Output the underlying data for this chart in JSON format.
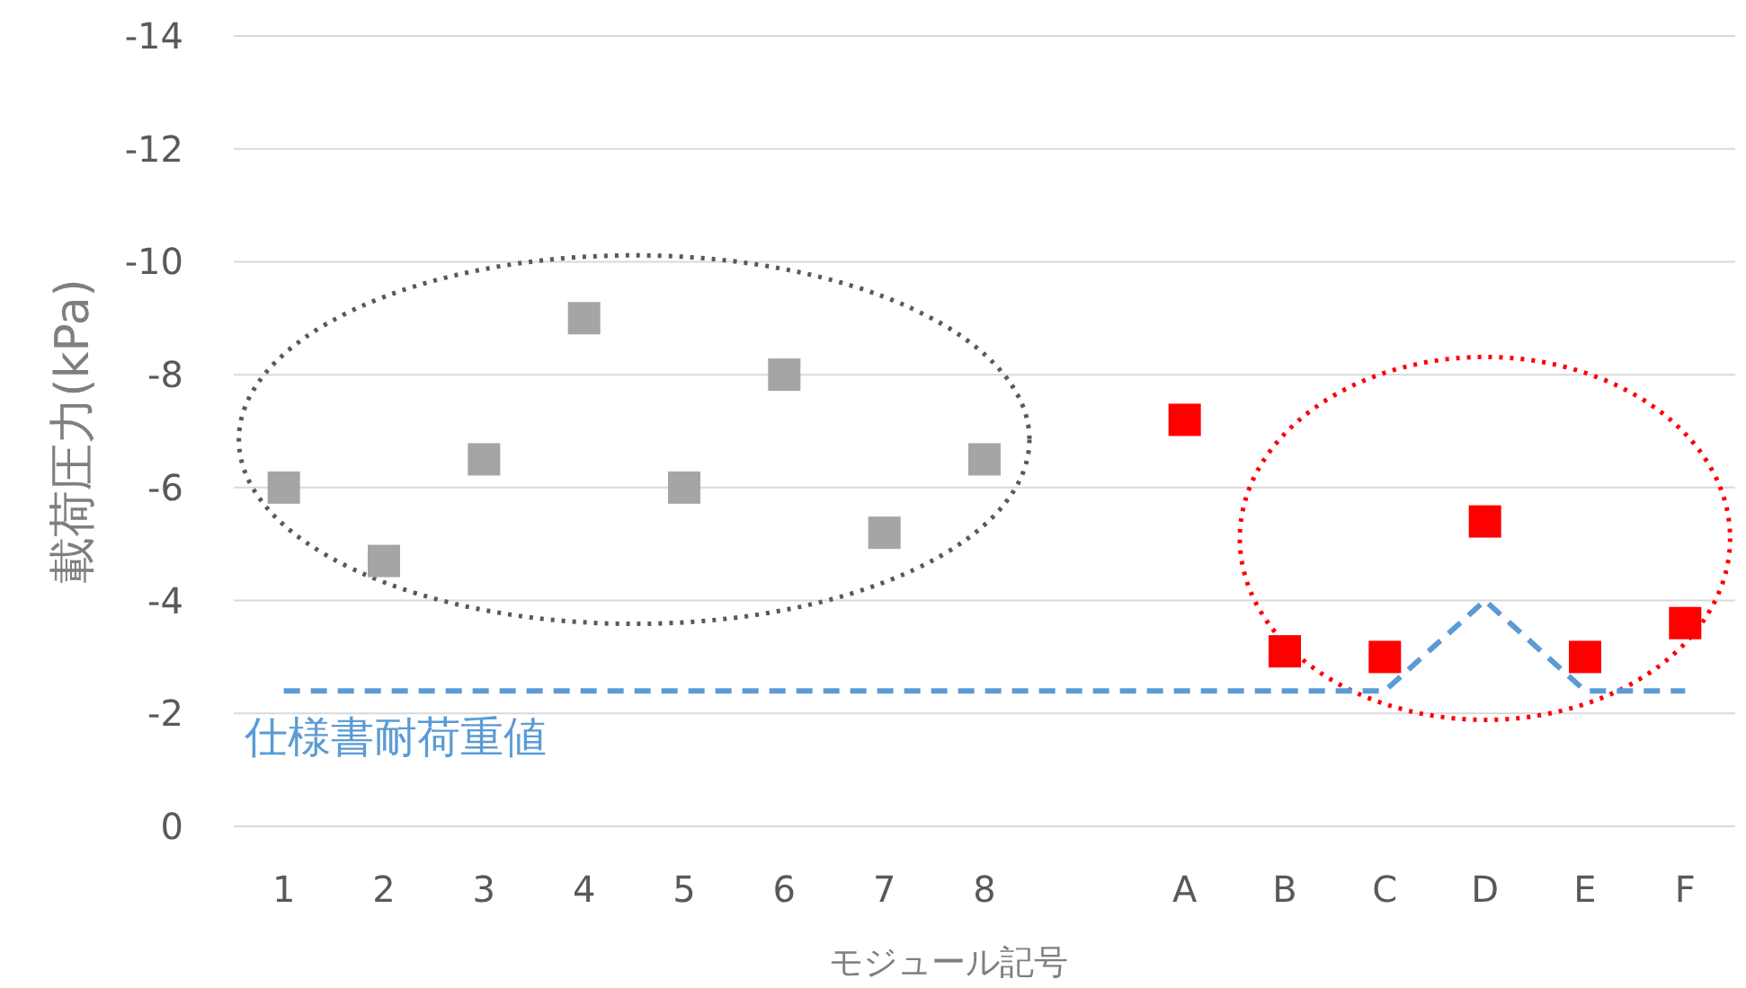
{
  "chart_data": {
    "type": "scatter",
    "xlabel": "モジュール記号",
    "ylabel": "載荷圧力(kPa)",
    "categories": [
      "1",
      "2",
      "3",
      "4",
      "5",
      "6",
      "7",
      "8",
      null,
      "A",
      "B",
      "C",
      "D",
      "E",
      "F"
    ],
    "ylim": [
      0,
      -14
    ],
    "yticks": [
      0,
      -2,
      -4,
      -6,
      -8,
      -10,
      -12,
      -14
    ],
    "grid": "y",
    "marker": "square",
    "series": [
      {
        "color": "#a5a5a5",
        "values": [
          -6,
          -4.7,
          -6.5,
          -9,
          -6,
          -8,
          -5.2,
          -6.5,
          null,
          null,
          null,
          null,
          null,
          null,
          null
        ]
      },
      {
        "color": "#ff0000",
        "values": [
          null,
          null,
          null,
          null,
          null,
          null,
          null,
          null,
          null,
          -7.2,
          -3.1,
          -3.0,
          -5.4,
          -3.0,
          -3.6
        ]
      },
      {
        "type": "line",
        "name": "仕様書耐荷重値",
        "color": "#5b9bd5",
        "line_style": "dashed",
        "marker": "none",
        "values": [
          -2.4,
          -2.4,
          -2.4,
          -2.4,
          -2.4,
          -2.4,
          -2.4,
          -2.4,
          -2.4,
          -2.4,
          -2.4,
          -2.4,
          -4,
          -2.4,
          -2.4
        ]
      }
    ]
  }
}
